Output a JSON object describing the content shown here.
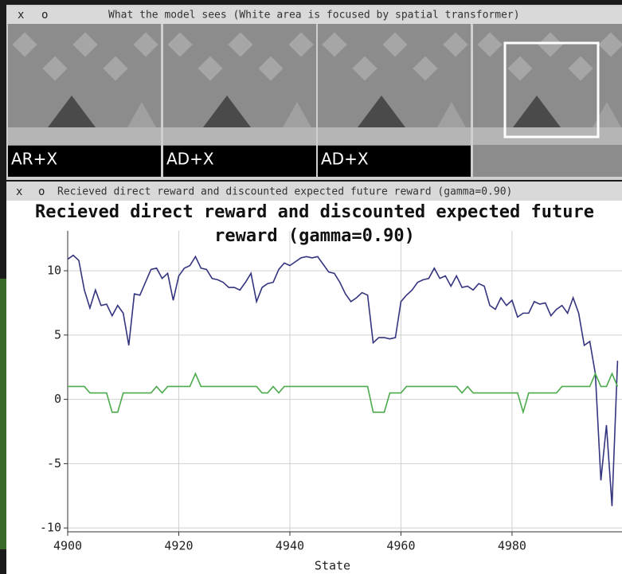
{
  "windows": [
    {
      "buttons": [
        "x",
        "o"
      ],
      "title": "What the model sees (White area is focused by spatial transformer)",
      "frames": [
        {
          "action": "AR+X"
        },
        {
          "action": "AD+X"
        },
        {
          "action": "AD+X"
        }
      ]
    },
    {
      "buttons": [
        "x",
        "o"
      ],
      "title": "Recieved direct reward and discounted expected future reward (gamma=0.90)"
    }
  ],
  "chart_data": {
    "type": "line",
    "title": "Recieved direct reward and discounted expected future reward (gamma=0.90)",
    "x_label": "State",
    "x": [
      4900,
      4901,
      4902,
      4903,
      4904,
      4905,
      4906,
      4907,
      4908,
      4909,
      4910,
      4911,
      4912,
      4913,
      4914,
      4915,
      4916,
      4917,
      4918,
      4919,
      4920,
      4921,
      4922,
      4923,
      4924,
      4925,
      4926,
      4927,
      4928,
      4929,
      4930,
      4931,
      4932,
      4933,
      4934,
      4935,
      4936,
      4937,
      4938,
      4939,
      4940,
      4941,
      4942,
      4943,
      4944,
      4945,
      4946,
      4947,
      4948,
      4949,
      4950,
      4951,
      4952,
      4953,
      4954,
      4955,
      4956,
      4957,
      4958,
      4959,
      4960,
      4961,
      4962,
      4963,
      4964,
      4965,
      4966,
      4967,
      4968,
      4969,
      4970,
      4971,
      4972,
      4973,
      4974,
      4975,
      4976,
      4977,
      4978,
      4979,
      4980,
      4981,
      4982,
      4983,
      4984,
      4985,
      4986,
      4987,
      4988,
      4989,
      4990,
      4991,
      4992,
      4993,
      4994,
      4995,
      4996,
      4997,
      4998,
      4999
    ],
    "series": [
      {
        "color": "#34347f",
        "values": [
          10.9,
          11.2,
          10.8,
          8.5,
          7.1,
          8.5,
          7.3,
          7.4,
          6.5,
          7.3,
          6.7,
          4.2,
          8.2,
          8.1,
          9.1,
          10.1,
          10.2,
          9.4,
          9.8,
          7.7,
          9.6,
          10.2,
          10.4,
          11.1,
          10.2,
          10.1,
          9.4,
          9.3,
          9.1,
          8.7,
          8.7,
          8.5,
          9.1,
          9.8,
          7.6,
          8.7,
          9.0,
          9.1,
          10.1,
          10.6,
          10.4,
          10.7,
          11.0,
          11.1,
          11.0,
          11.1,
          10.5,
          9.9,
          9.8,
          9.1,
          8.2,
          7.6,
          7.9,
          8.3,
          8.1,
          4.4,
          4.8,
          4.8,
          4.7,
          4.8,
          7.6,
          8.1,
          8.5,
          9.1,
          9.3,
          9.4,
          10.2,
          9.4,
          9.6,
          8.8,
          9.6,
          8.7,
          8.8,
          8.5,
          9.0,
          8.8,
          7.3,
          7.0,
          7.9,
          7.3,
          7.7,
          6.4,
          6.7,
          6.7,
          7.6,
          7.4,
          7.5,
          6.5,
          7.0,
          7.3,
          6.7,
          7.9,
          6.7,
          4.2,
          4.5,
          2.0,
          -6.3,
          -2.0,
          -8.3,
          3.0
        ]
      },
      {
        "color": "#4caa4c",
        "values": [
          1,
          1,
          1,
          1,
          0.5,
          0.5,
          0.5,
          0.5,
          -1,
          -1,
          0.5,
          0.5,
          0.5,
          0.5,
          0.5,
          0.5,
          1,
          0.5,
          1,
          1,
          1,
          1,
          1,
          2,
          1,
          1,
          1,
          1,
          1,
          1,
          1,
          1,
          1,
          1,
          1,
          0.5,
          0.5,
          1,
          0.5,
          1,
          1,
          1,
          1,
          1,
          1,
          1,
          1,
          1,
          1,
          1,
          1,
          1,
          1,
          1,
          1,
          -1,
          -1,
          -1,
          0.5,
          0.5,
          0.5,
          1,
          1,
          1,
          1,
          1,
          1,
          1,
          1,
          1,
          1,
          0.5,
          1,
          0.5,
          0.5,
          0.5,
          0.5,
          0.5,
          0.5,
          0.5,
          0.5,
          0.5,
          -1,
          0.5,
          0.5,
          0.5,
          0.5,
          0.5,
          0.5,
          1,
          1,
          1,
          1,
          1,
          1,
          2,
          1,
          1,
          2,
          1
        ]
      }
    ],
    "xlim": [
      4900,
      4999.8
    ],
    "ylim": [
      -10.3,
      13.1
    ],
    "xticks": [
      4900,
      4920,
      4940,
      4960,
      4980
    ],
    "yticks": [
      -10,
      -5,
      0,
      5,
      10
    ],
    "grid": true
  }
}
